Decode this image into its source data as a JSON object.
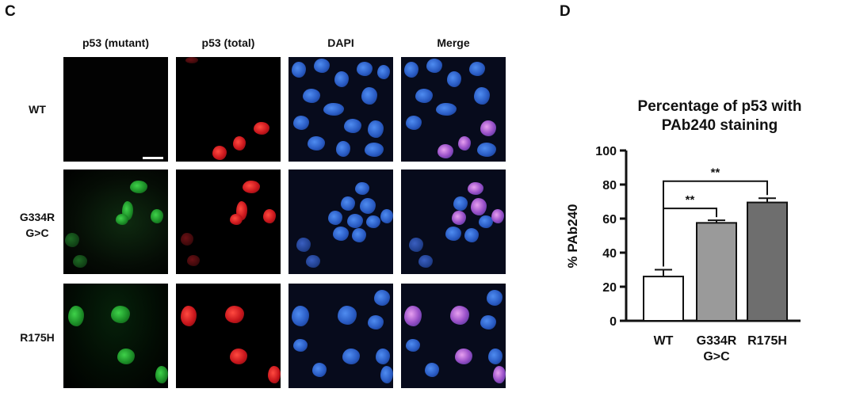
{
  "panel_c": {
    "letter": "C",
    "columns": [
      "p53 (mutant)",
      "p53 (total)",
      "DAPI",
      "Merge"
    ],
    "rows": [
      {
        "lines": [
          "WT"
        ]
      },
      {
        "lines": [
          "G334R",
          "G>C"
        ]
      },
      {
        "lines": [
          "R175H"
        ]
      }
    ]
  },
  "panel_d": {
    "letter": "D"
  },
  "chart_data": {
    "type": "bar",
    "title_lines": [
      "Percentage of p53 with",
      "PAb240 staining"
    ],
    "ylabel": "% PAb240",
    "xlabel": "",
    "categories": [
      [
        "WT"
      ],
      [
        "G334R",
        "G>C"
      ],
      [
        "R175H"
      ]
    ],
    "values": [
      26,
      57.5,
      69.5
    ],
    "errors": [
      4,
      1.5,
      2.5
    ],
    "bar_colors": [
      "#ffffff",
      "#9a9a9a",
      "#6e6e6e"
    ],
    "ylim": [
      0,
      100
    ],
    "yticks": [
      0,
      20,
      40,
      60,
      80,
      100
    ],
    "significance": [
      {
        "from": 0,
        "to": 1,
        "label": "**",
        "y": 66
      },
      {
        "from": 0,
        "to": 2,
        "label": "**",
        "y": 82
      }
    ],
    "grid": false,
    "legend": "none"
  }
}
